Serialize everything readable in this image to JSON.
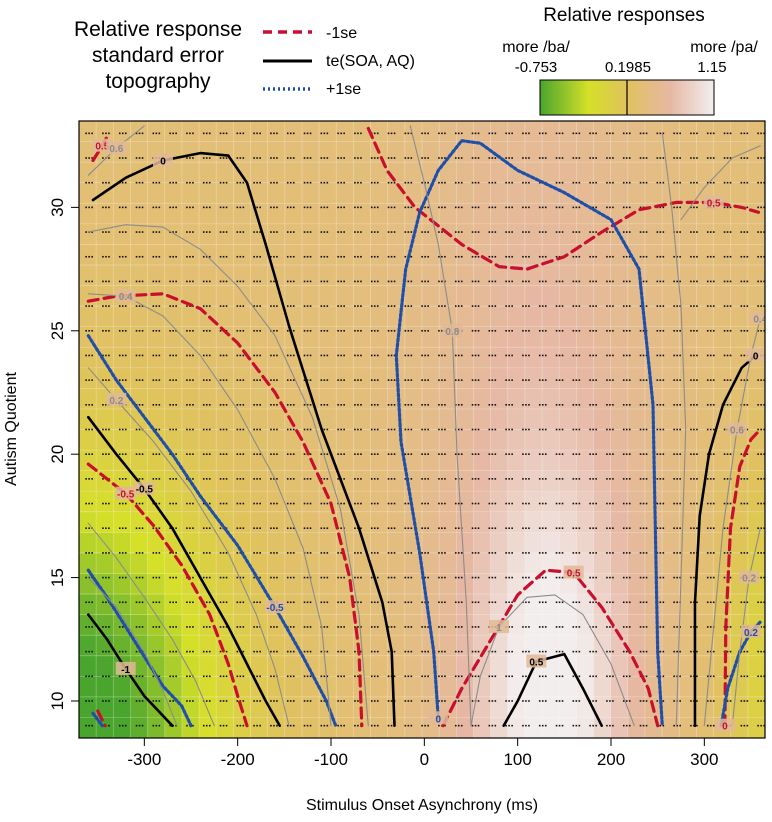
{
  "chart_data": {
    "type": "heatmap",
    "title": "Relative response standard error topography",
    "title_lines": [
      "Relative response",
      "standard error",
      "topography"
    ],
    "xlabel": "Stimulus Onset Asynchrony (ms)",
    "ylabel": "Autism Quotient",
    "xlim": [
      -370,
      365
    ],
    "ylim": [
      8.5,
      33.5
    ],
    "x_ticks": [
      -300,
      -200,
      -100,
      0,
      100,
      200,
      300
    ],
    "x_tick_labels": [
      "-300",
      "-200",
      "-100",
      "0",
      "100",
      "200",
      "300"
    ],
    "y_ticks": [
      10,
      15,
      20,
      25,
      30
    ],
    "y_tick_labels": [
      "10",
      "15",
      "20",
      "25",
      "30"
    ],
    "grid": true,
    "legend": {
      "position": "top-center",
      "entries": [
        {
          "label": "-1se",
          "color": "#c8102e",
          "style": "dashed"
        },
        {
          "label": "te(SOA, AQ)",
          "color": "#000000",
          "style": "solid"
        },
        {
          "label": "+1se",
          "color": "#1f4fa8",
          "style": "dotted"
        }
      ]
    },
    "colorbar": {
      "title": "Relative responses",
      "left_label": "more /ba/",
      "right_label": "more /pa/",
      "min": -0.753,
      "mid": 0.1985,
      "max": 1.15,
      "min_label": "-0.753",
      "mid_label": "0.1985",
      "max_label": "1.15",
      "colors": [
        "#4aa52e",
        "#d6e028",
        "#e0c25e",
        "#e6b8a4",
        "#f3eeee"
      ]
    },
    "contour_levels": {
      "fit_labels": [
        "0",
        "-0.5",
        "-1",
        "0.5",
        "0"
      ],
      "minus_se_labels": [
        "0.5",
        "-0.5",
        "0.5",
        "0.5",
        "0"
      ],
      "plus_se_labels": [
        "-0.5",
        "0",
        "0.2"
      ],
      "gray_labels": [
        "0.6",
        "0.4",
        "0.2",
        "0.8",
        "0.6",
        "0.4",
        "0.2",
        "1"
      ]
    },
    "series": [
      {
        "name": "te(SOA, AQ)",
        "style": "solid",
        "color": "#000000",
        "lines": [
          [
            [
              -355,
              30.3
            ],
            [
              -320,
              31.2
            ],
            [
              -280,
              31.9
            ],
            [
              -240,
              32.2
            ],
            [
              -210,
              32.1
            ],
            [
              -190,
              31.0
            ],
            [
              -170,
              28.5
            ],
            [
              -145,
              25.2
            ],
            [
              -110,
              21.0
            ],
            [
              -70,
              17.0
            ],
            [
              -45,
              14.0
            ],
            [
              -35,
              12.0
            ],
            [
              -32,
              9.0
            ]
          ],
          [
            [
              -360,
              21.5
            ],
            [
              -330,
              20.0
            ],
            [
              -300,
              18.6
            ],
            [
              -270,
              17.0
            ],
            [
              -240,
              15.0
            ],
            [
              -210,
              13.0
            ],
            [
              -190,
              11.5
            ],
            [
              -170,
              10.0
            ],
            [
              -155,
              9.0
            ]
          ],
          [
            [
              -360,
              13.5
            ],
            [
              -340,
              12.5
            ],
            [
              -320,
              11.3
            ],
            [
              -300,
              10.2
            ],
            [
              -280,
              9.4
            ],
            [
              -270,
              9.0
            ]
          ],
          [
            [
              85,
              9.0
            ],
            [
              100,
              10.0
            ],
            [
              120,
              11.6
            ],
            [
              150,
              11.9
            ],
            [
              170,
              10.5
            ],
            [
              190,
              9.0
            ]
          ],
          [
            [
              290,
              9.0
            ],
            [
              290,
              14.0
            ],
            [
              295,
              17.5
            ],
            [
              305,
              20.0
            ],
            [
              320,
              22.0
            ],
            [
              340,
              23.5
            ],
            [
              355,
              24.0
            ]
          ]
        ]
      },
      {
        "name": "-1se",
        "style": "dashed",
        "color": "#c8102e",
        "lines": [
          [
            [
              -355,
              31.9
            ],
            [
              -345,
              32.5
            ],
            [
              -338,
              33.0
            ]
          ],
          [
            [
              -360,
              26.2
            ],
            [
              -330,
              26.4
            ],
            [
              -280,
              26.5
            ],
            [
              -240,
              25.9
            ],
            [
              -200,
              24.5
            ],
            [
              -160,
              22.5
            ],
            [
              -130,
              20.5
            ],
            [
              -100,
              18.0
            ],
            [
              -80,
              15.0
            ],
            [
              -70,
              12.0
            ],
            [
              -67,
              9.0
            ]
          ],
          [
            [
              -360,
              19.6
            ],
            [
              -320,
              18.4
            ],
            [
              -290,
              17.1
            ],
            [
              -260,
              15.5
            ],
            [
              -230,
              13.5
            ],
            [
              -210,
              11.5
            ],
            [
              -200,
              10.2
            ],
            [
              -190,
              9.0
            ]
          ],
          [
            [
              -350,
              9.6
            ],
            [
              -342,
              9.0
            ]
          ],
          [
            [
              -60,
              33.2
            ],
            [
              -40,
              31.5
            ],
            [
              -10,
              30.0
            ],
            [
              40,
              28.5
            ],
            [
              80,
              27.6
            ],
            [
              110,
              27.5
            ],
            [
              150,
              28.0
            ],
            [
              190,
              29.0
            ],
            [
              230,
              29.9
            ],
            [
              270,
              30.2
            ],
            [
              310,
              30.2
            ],
            [
              340,
              30.0
            ],
            [
              358,
              29.8
            ]
          ],
          [
            [
              20,
              9.0
            ],
            [
              40,
              10.5
            ],
            [
              70,
              12.4
            ],
            [
              100,
              14.3
            ],
            [
              130,
              15.3
            ],
            [
              160,
              15.2
            ],
            [
              190,
              13.8
            ],
            [
              220,
              12.0
            ],
            [
              240,
              10.5
            ],
            [
              250,
              9.0
            ]
          ],
          [
            [
              322,
              9.0
            ],
            [
              323,
              13.0
            ],
            [
              328,
              17.0
            ],
            [
              338,
              19.5
            ],
            [
              350,
              20.6
            ],
            [
              360,
              21.0
            ]
          ]
        ]
      },
      {
        "name": "+1se",
        "style": "dotted",
        "color": "#1f4fa8",
        "lines": [
          [
            [
              -360,
              24.8
            ],
            [
              -330,
              23.0
            ],
            [
              -300,
              21.5
            ],
            [
              -270,
              20.0
            ],
            [
              -240,
              18.3
            ],
            [
              -200,
              16.3
            ],
            [
              -160,
              13.8
            ],
            [
              -130,
              11.8
            ],
            [
              -105,
              10.0
            ],
            [
              -95,
              9.0
            ]
          ],
          [
            [
              -360,
              15.3
            ],
            [
              -340,
              14.2
            ],
            [
              -320,
              13.0
            ],
            [
              -300,
              11.8
            ],
            [
              -280,
              10.6
            ],
            [
              -260,
              9.8
            ],
            [
              -250,
              9.0
            ]
          ],
          [
            [
              -355,
              9.5
            ],
            [
              -345,
              9.0
            ]
          ],
          [
            [
              15,
              9.3
            ],
            [
              10,
              12.0
            ],
            [
              -5,
              16.0
            ],
            [
              -25,
              20.5
            ],
            [
              -30,
              24.0
            ],
            [
              -20,
              27.5
            ],
            [
              -5,
              29.8
            ],
            [
              15,
              31.5
            ],
            [
              40,
              32.7
            ],
            [
              60,
              32.6
            ],
            [
              100,
              31.5
            ],
            [
              150,
              30.6
            ],
            [
              200,
              29.5
            ],
            [
              230,
              27.5
            ],
            [
              245,
              22.0
            ],
            [
              248,
              16.0
            ],
            [
              250,
              12.0
            ],
            [
              255,
              9.0
            ]
          ],
          [
            [
              318,
              9.0
            ],
            [
              325,
              10.5
            ],
            [
              338,
              12.0
            ],
            [
              350,
              12.8
            ],
            [
              360,
              13.2
            ]
          ]
        ]
      },
      {
        "name": "gray contours",
        "style": "thin",
        "color": "#8c8c8c",
        "lines": [
          [
            [
              -360,
              31.3
            ],
            [
              -330,
              32.4
            ],
            [
              -300,
              33.3
            ]
          ],
          [
            [
              -360,
              29.0
            ],
            [
              -320,
              29.3
            ],
            [
              -280,
              29.2
            ],
            [
              -240,
              28.3
            ],
            [
              -200,
              26.8
            ],
            [
              -160,
              24.8
            ],
            [
              -120,
              21.5
            ],
            [
              -90,
              17.8
            ],
            [
              -70,
              13.5
            ],
            [
              -60,
              9.0
            ]
          ],
          [
            [
              -360,
              26.5
            ],
            [
              -320,
              26.4
            ],
            [
              -280,
              25.6
            ],
            [
              -240,
              24.0
            ],
            [
              -200,
              21.8
            ],
            [
              -160,
              19.0
            ],
            [
              -130,
              16.2
            ],
            [
              -110,
              13.0
            ],
            [
              -100,
              9.0
            ]
          ],
          [
            [
              -360,
              23.5
            ],
            [
              -330,
              22.2
            ],
            [
              -290,
              20.5
            ],
            [
              -250,
              18.5
            ],
            [
              -210,
              16.0
            ],
            [
              -180,
              13.5
            ],
            [
              -160,
              11.3
            ],
            [
              -145,
              9.0
            ]
          ],
          [
            [
              -360,
              17.2
            ],
            [
              -330,
              15.8
            ],
            [
              -300,
              14.2
            ],
            [
              -270,
              12.5
            ],
            [
              -245,
              10.8
            ],
            [
              -225,
              9.0
            ]
          ],
          [
            [
              -360,
              15.0
            ],
            [
              -330,
              13.8
            ],
            [
              -300,
              12.0
            ],
            [
              -280,
              10.4
            ],
            [
              -265,
              9.0
            ]
          ],
          [
            [
              -15,
              33.3
            ],
            [
              0,
              31.0
            ],
            [
              15,
              28.5
            ],
            [
              30,
              25.0
            ],
            [
              35,
              20.0
            ],
            [
              45,
              14.0
            ],
            [
              50,
              9.0
            ]
          ],
          [
            [
              50,
              9.0
            ],
            [
              60,
              11.0
            ],
            [
              80,
              13.0
            ],
            [
              110,
              14.2
            ],
            [
              140,
              14.3
            ],
            [
              170,
              13.5
            ],
            [
              200,
              11.5
            ],
            [
              225,
              9.0
            ]
          ],
          [
            [
              255,
              33.0
            ],
            [
              265,
              30.0
            ],
            [
              275,
              26.0
            ],
            [
              280,
              21.0
            ],
            [
              275,
              15.0
            ],
            [
              270,
              9.0
            ]
          ],
          [
            [
              275,
              29.5
            ],
            [
              300,
              30.8
            ],
            [
              330,
              32.0
            ],
            [
              360,
              32.5
            ]
          ],
          [
            [
              300,
              9.0
            ],
            [
              310,
              13.0
            ],
            [
              320,
              17.0
            ],
            [
              335,
              21.0
            ],
            [
              350,
              24.0
            ],
            [
              360,
              25.5
            ]
          ],
          [
            [
              330,
              9.0
            ],
            [
              338,
              12.0
            ],
            [
              348,
              15.0
            ],
            [
              360,
              17.0
            ]
          ]
        ]
      }
    ]
  }
}
